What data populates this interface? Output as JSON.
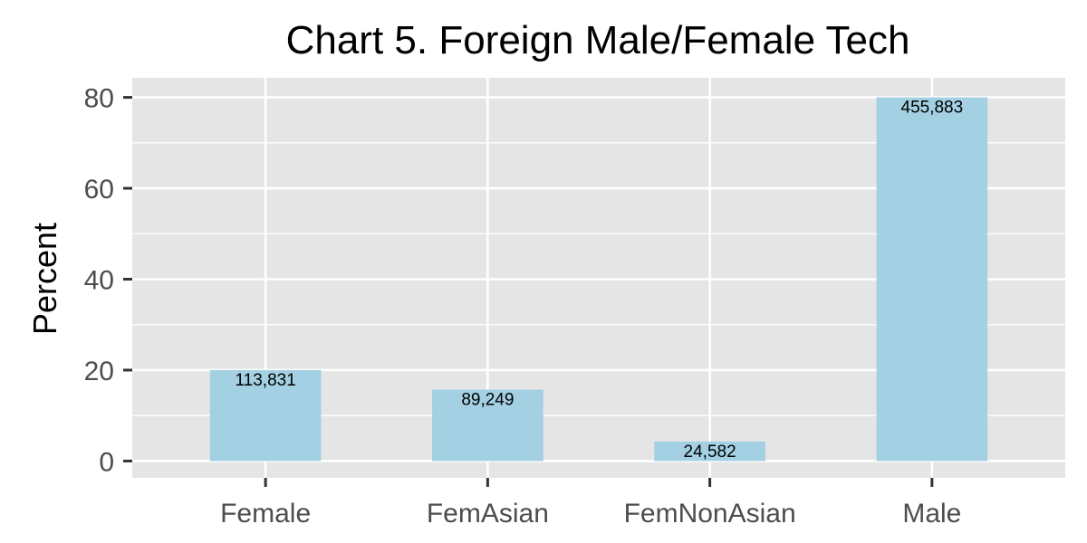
{
  "chart_data": {
    "type": "bar",
    "title": "Chart 5. Foreign Male/Female Tech",
    "xlabel": "",
    "ylabel": "Percent",
    "categories": [
      "Female",
      "FemAsian",
      "FemNonAsian",
      "Male"
    ],
    "values": [
      20.0,
      15.7,
      4.3,
      80.0
    ],
    "data_labels": [
      "113,831",
      "89,249",
      "24,582",
      "455,883"
    ],
    "ylim": [
      -3.7,
      84.3
    ],
    "yticks": [
      0,
      20,
      40,
      60,
      80
    ],
    "ytick_labels": [
      "0",
      "20",
      "40",
      "60",
      "80"
    ],
    "grid": true,
    "legend": "none",
    "colors": {
      "bar": "#a3d0e2",
      "panel": "#e5e5e5",
      "grid": "#ffffff",
      "tick": "#333333",
      "tick_text": "#4d4d4d"
    }
  }
}
